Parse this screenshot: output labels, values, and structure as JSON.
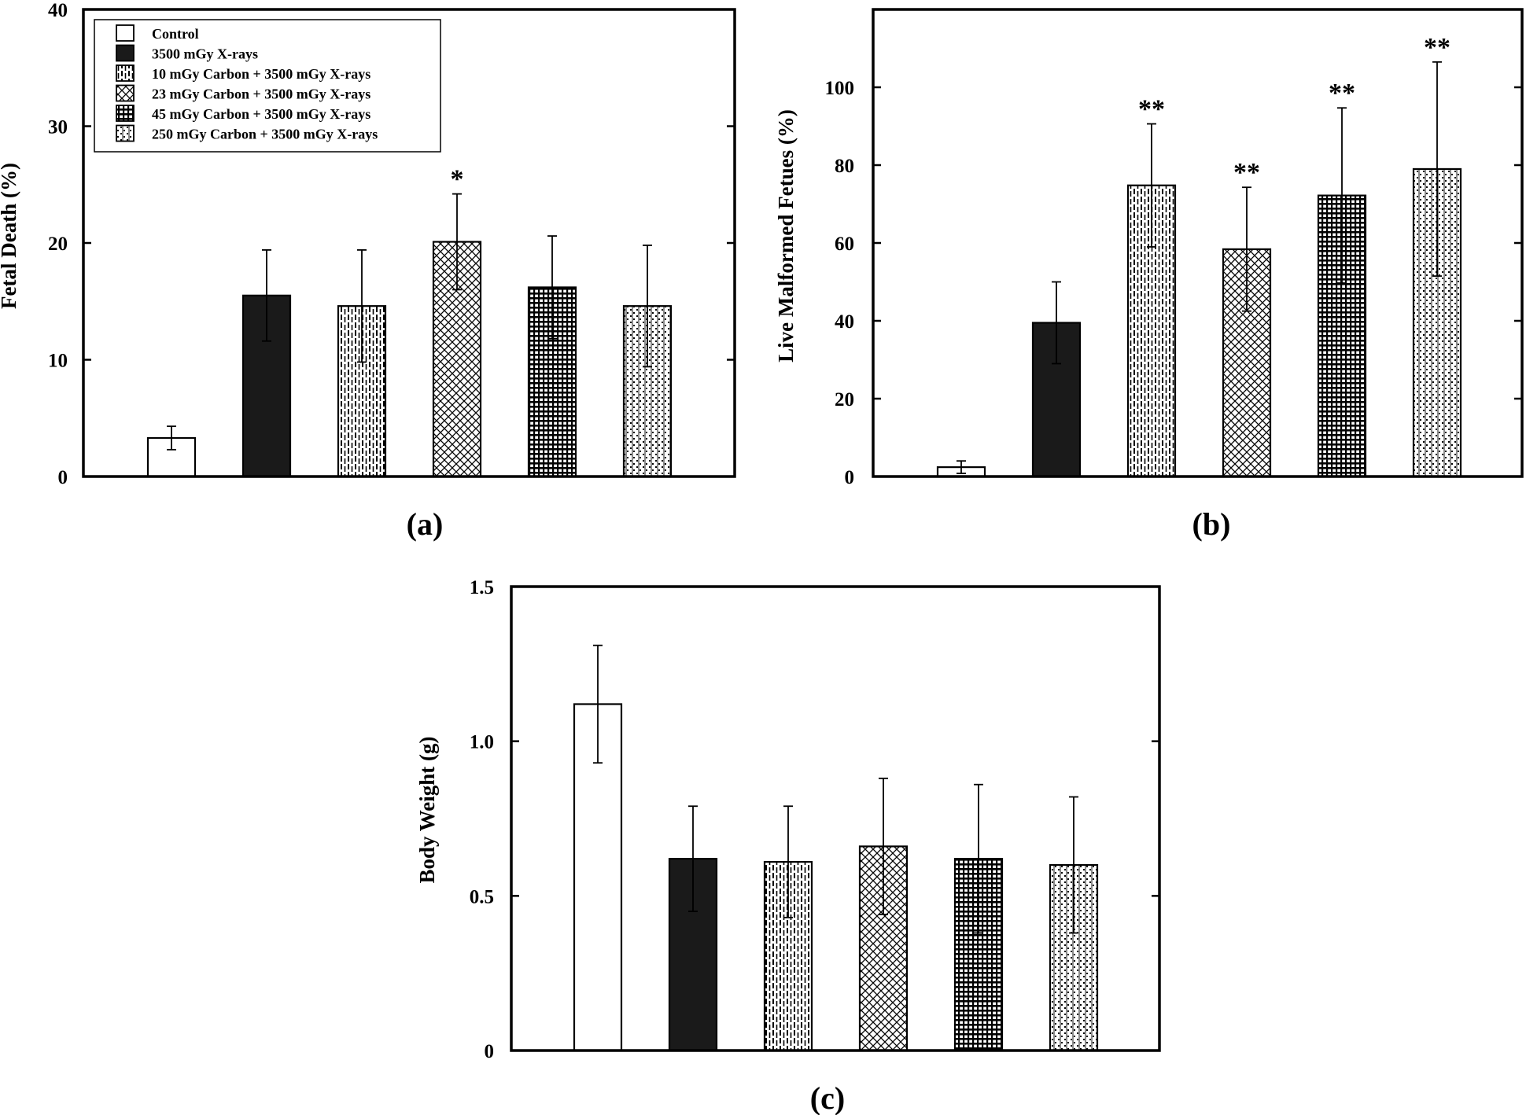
{
  "legend": {
    "entries": [
      {
        "label": "Control",
        "pattern": "empty"
      },
      {
        "label": "3500 mGy X-rays",
        "pattern": "solid"
      },
      {
        "label": "10 mGy Carbon + 3500 mGy X-rays",
        "pattern": "vdash"
      },
      {
        "label": "23 mGy Carbon + 3500 mGy X-rays",
        "pattern": "cross"
      },
      {
        "label": "45 mGy Carbon + 3500 mGy X-rays",
        "pattern": "grid"
      },
      {
        "label": "250 mGy Carbon + 3500 mGy X-rays",
        "pattern": "dots"
      }
    ]
  },
  "chart_data": [
    {
      "type": "bar",
      "panel_label": "(a)",
      "ylabel": "Fetal Death (%)",
      "ylim": [
        0,
        40
      ],
      "yticks": [
        0,
        10,
        20,
        30,
        40
      ],
      "grid": false,
      "legend_position": "top-left",
      "values": [
        3.3,
        15.5,
        14.6,
        20.1,
        16.2,
        14.6
      ],
      "errors": [
        1.0,
        3.9,
        4.8,
        4.1,
        4.4,
        5.2
      ],
      "annotations": [
        "",
        "",
        "",
        "*",
        "",
        ""
      ]
    },
    {
      "type": "bar",
      "panel_label": "(b)",
      "ylabel": "Live Malformed Fetues (%)",
      "ylim": [
        0,
        120
      ],
      "yticks": [
        0,
        20,
        40,
        60,
        80,
        100
      ],
      "grid": false,
      "values": [
        2.4,
        39.5,
        74.8,
        58.4,
        72.2,
        79.0
      ],
      "errors": [
        1.6,
        10.5,
        15.8,
        15.9,
        22.5,
        27.5
      ],
      "annotations": [
        "",
        "",
        "**",
        "**",
        "**",
        "**"
      ]
    },
    {
      "type": "bar",
      "panel_label": "(c)",
      "ylabel": "Body Weight (g)",
      "ylim": [
        0,
        1.5
      ],
      "yticks": [
        0,
        0.5,
        1.0,
        1.5
      ],
      "tick_labels": [
        "0",
        "0.5",
        "1.0",
        "1.5"
      ],
      "grid": false,
      "values": [
        1.12,
        0.62,
        0.61,
        0.66,
        0.62,
        0.6
      ],
      "errors": [
        0.19,
        0.17,
        0.18,
        0.22,
        0.24,
        0.22
      ],
      "annotations": [
        "",
        "",
        "",
        "",
        "",
        ""
      ]
    }
  ]
}
